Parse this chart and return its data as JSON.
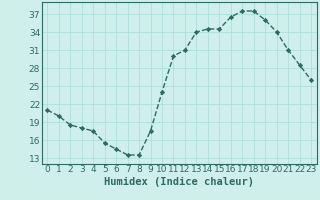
{
  "x": [
    0,
    1,
    2,
    3,
    4,
    5,
    6,
    7,
    8,
    9,
    10,
    11,
    12,
    13,
    14,
    15,
    16,
    17,
    18,
    19,
    20,
    21,
    22,
    23
  ],
  "y": [
    21,
    20,
    18.5,
    18,
    17.5,
    15.5,
    14.5,
    13.5,
    13.5,
    17.5,
    24,
    30,
    31,
    34,
    34.5,
    34.5,
    36.5,
    37.5,
    37.5,
    36,
    34,
    31,
    28.5,
    26
  ],
  "line_color": "#2e6b5e",
  "marker_color": "#2e6b5e",
  "bg_color": "#cff0ea",
  "grid_color": "#a8ddd6",
  "xlabel": "Humidex (Indice chaleur)",
  "yticks": [
    13,
    16,
    19,
    22,
    25,
    28,
    31,
    34,
    37
  ],
  "xticks": [
    0,
    1,
    2,
    3,
    4,
    5,
    6,
    7,
    8,
    9,
    10,
    11,
    12,
    13,
    14,
    15,
    16,
    17,
    18,
    19,
    20,
    21,
    22,
    23
  ],
  "ylim": [
    12,
    39
  ],
  "xlim": [
    -0.5,
    23.5
  ],
  "xlabel_fontsize": 7.5,
  "tick_fontsize": 6.5
}
